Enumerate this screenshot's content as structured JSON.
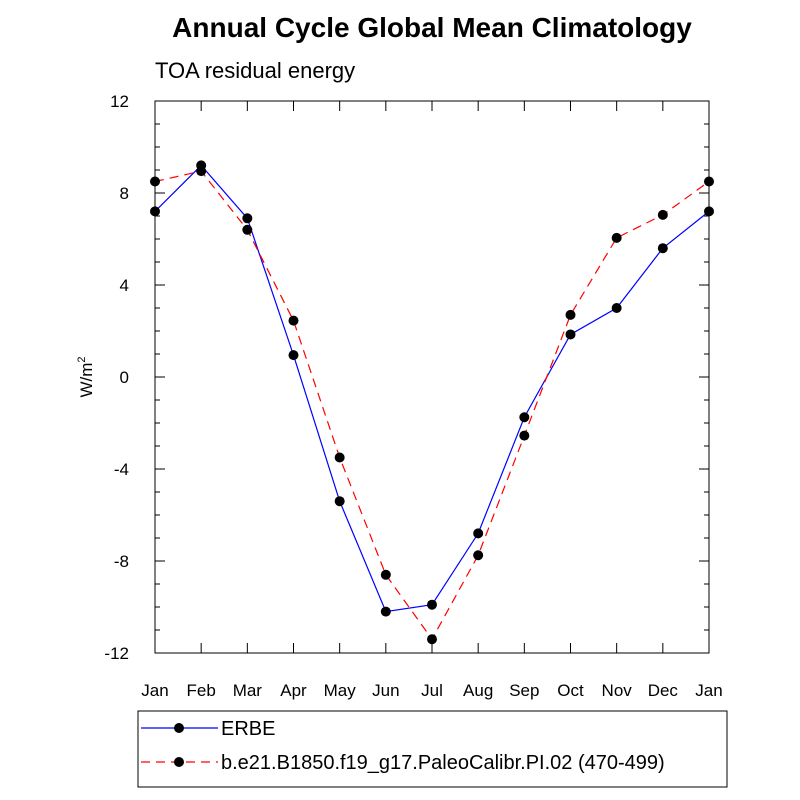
{
  "chart_data": {
    "type": "line",
    "title": "Annual Cycle Global Mean Climatology",
    "subtitle": "TOA residual energy",
    "ylabel": {
      "base": "W/m",
      "sup": "2"
    },
    "categories": [
      "Jan",
      "Feb",
      "Mar",
      "Apr",
      "May",
      "Jun",
      "Jul",
      "Aug",
      "Sep",
      "Oct",
      "Nov",
      "Dec",
      "Jan"
    ],
    "ylim": [
      -12,
      12
    ],
    "yticks": [
      12,
      8,
      4,
      0,
      -4,
      -8,
      -12
    ],
    "ytick_labels": [
      "12",
      "8",
      "4",
      "0",
      "-4",
      "-8",
      "-12"
    ],
    "series": [
      {
        "name": "ERBE",
        "color": "#0000ff",
        "dash": "solid",
        "values": [
          7.2,
          9.2,
          6.9,
          0.95,
          -5.4,
          -10.2,
          -9.9,
          -6.8,
          -1.75,
          1.85,
          3.0,
          5.6,
          7.2
        ]
      },
      {
        "name": "b.e21.B1850.f19_g17.PaleoCalibr.PI.02 (470-499)",
        "color": "#ff0000",
        "dash": "dashed",
        "values": [
          8.5,
          8.95,
          6.4,
          2.45,
          -3.5,
          -8.6,
          -11.4,
          -7.75,
          -2.55,
          2.7,
          6.05,
          7.05,
          8.5
        ]
      }
    ],
    "legend": "bottom"
  }
}
